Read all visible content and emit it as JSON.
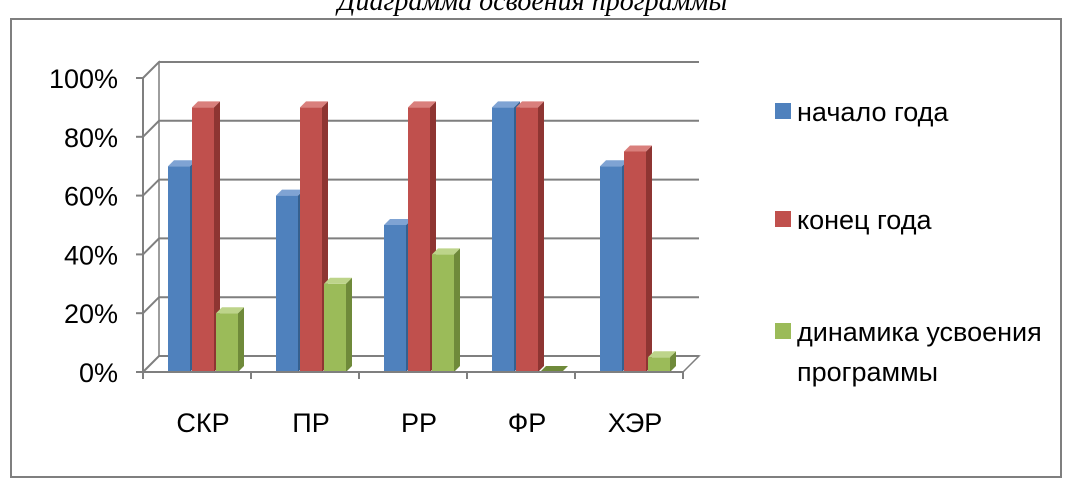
{
  "title": "Диаграмма освоения программы",
  "colors": {
    "series": [
      "#4F81BD",
      "#C0504D",
      "#9BBB59"
    ],
    "series_dark": [
      "#35608F",
      "#8E3532",
      "#6F8A3A"
    ],
    "series_top": [
      "#7FA3D3",
      "#D97F7C",
      "#BDD48A"
    ],
    "grid": "#7f7f7f"
  },
  "chart_data": {
    "type": "bar",
    "categories": [
      "СКР",
      "ПР",
      "РР",
      "ФР",
      "ХЭР"
    ],
    "series": [
      {
        "name": "начало года",
        "values": [
          70,
          60,
          50,
          90,
          70
        ]
      },
      {
        "name": "конец года",
        "values": [
          90,
          90,
          90,
          90,
          75
        ]
      },
      {
        "name": "динамика усвоения программы",
        "values": [
          20,
          30,
          40,
          0,
          5
        ]
      }
    ],
    "ylim": [
      0,
      100
    ],
    "yticks": [
      "0%",
      "20%",
      "40%",
      "60%",
      "80%",
      "100%"
    ],
    "grid": true,
    "legend_position": "right",
    "three_d": true
  }
}
